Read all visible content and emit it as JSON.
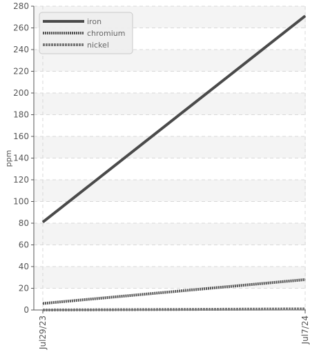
{
  "chart_data": {
    "type": "line",
    "title": "",
    "xlabel": "",
    "ylabel": "ppm",
    "ylim": [
      0,
      280
    ],
    "yticks": [
      0,
      20,
      40,
      60,
      80,
      100,
      120,
      140,
      160,
      180,
      200,
      220,
      240,
      260,
      280
    ],
    "x": [
      "Jul29/23",
      "Jul7/24"
    ],
    "categories": [
      "Jul29/23",
      "Jul7/24"
    ],
    "grid": true,
    "legend_position": "top-left",
    "series": [
      {
        "name": "iron",
        "values": [
          81,
          271
        ],
        "color": "#4a4a4a",
        "style": "solid"
      },
      {
        "name": "chromium",
        "values": [
          6,
          28
        ],
        "color": "#555555",
        "style": "dotted"
      },
      {
        "name": "nickel",
        "values": [
          0,
          1
        ],
        "color": "#777777",
        "style": "dashed"
      }
    ],
    "colors": {
      "band": "#f4f4f4",
      "grid": "#d8d8d8",
      "axis": "#555555"
    }
  }
}
